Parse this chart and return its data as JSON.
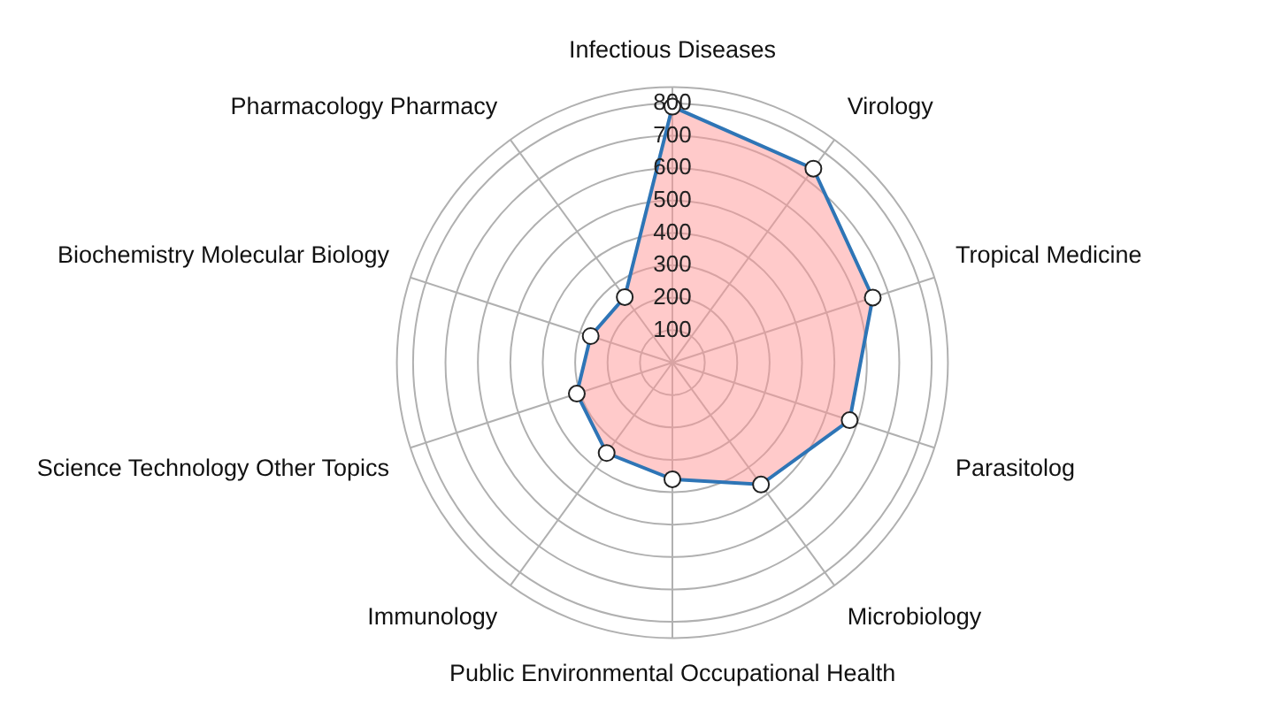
{
  "chart_data": {
    "type": "radar",
    "categories": [
      "Infectious Diseases",
      "Virology",
      "Tropical Medicine",
      "Parasitolog",
      "Microbiology",
      "Public Environmental Occupational Health",
      "Immunology",
      "Science Technology Other Topics",
      "Biochemistry Molecular Biology",
      "Pharmacology Pharmacy"
    ],
    "series": [
      {
        "color": "#2e75b6",
        "values": [
          790,
          740,
          650,
          575,
          465,
          360,
          345,
          310,
          265,
          250
        ]
      }
    ],
    "ylim": [
      0,
      850
    ],
    "yticks": [
      100,
      200,
      300,
      400,
      500,
      600,
      700,
      800
    ],
    "grid": true,
    "legend": false,
    "marker": "circle",
    "line_style": "solid"
  }
}
